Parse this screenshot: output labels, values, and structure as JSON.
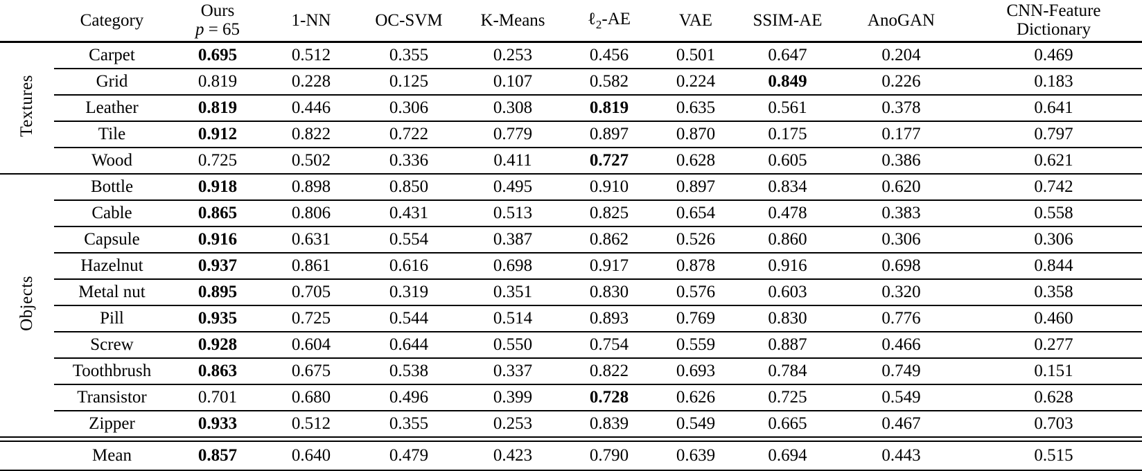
{
  "table": {
    "columns": [
      {
        "id": "category",
        "label": "Category"
      },
      {
        "id": "ours",
        "label": "Ours",
        "label2_pre": "p",
        "label2_post": " = 65"
      },
      {
        "id": "one-nn",
        "label": "1-NN"
      },
      {
        "id": "oc-svm",
        "label": "OC-SVM"
      },
      {
        "id": "k-means",
        "label": "K-Means"
      },
      {
        "id": "l2-ae",
        "label_pre": "ℓ",
        "label_sub": "2",
        "label_post": "-AE"
      },
      {
        "id": "vae",
        "label": "VAE"
      },
      {
        "id": "ssim-ae",
        "label": "SSIM-AE"
      },
      {
        "id": "anogan",
        "label": "AnoGAN"
      },
      {
        "id": "cnn-feature-dictionary",
        "label": "CNN-Feature",
        "label2": "Dictionary"
      }
    ],
    "groups": [
      {
        "name": "Textures",
        "rows": [
          {
            "category": "Carpet",
            "values": [
              "0.695",
              "0.512",
              "0.355",
              "0.253",
              "0.456",
              "0.501",
              "0.647",
              "0.204",
              "0.469"
            ],
            "bold": [
              0
            ]
          },
          {
            "category": "Grid",
            "values": [
              "0.819",
              "0.228",
              "0.125",
              "0.107",
              "0.582",
              "0.224",
              "0.849",
              "0.226",
              "0.183"
            ],
            "bold": [
              6
            ]
          },
          {
            "category": "Leather",
            "values": [
              "0.819",
              "0.446",
              "0.306",
              "0.308",
              "0.819",
              "0.635",
              "0.561",
              "0.378",
              "0.641"
            ],
            "bold": [
              0,
              4
            ]
          },
          {
            "category": "Tile",
            "values": [
              "0.912",
              "0.822",
              "0.722",
              "0.779",
              "0.897",
              "0.870",
              "0.175",
              "0.177",
              "0.797"
            ],
            "bold": [
              0
            ]
          },
          {
            "category": "Wood",
            "values": [
              "0.725",
              "0.502",
              "0.336",
              "0.411",
              "0.727",
              "0.628",
              "0.605",
              "0.386",
              "0.621"
            ],
            "bold": [
              4
            ]
          }
        ]
      },
      {
        "name": "Objects",
        "rows": [
          {
            "category": "Bottle",
            "values": [
              "0.918",
              "0.898",
              "0.850",
              "0.495",
              "0.910",
              "0.897",
              "0.834",
              "0.620",
              "0.742"
            ],
            "bold": [
              0
            ]
          },
          {
            "category": "Cable",
            "values": [
              "0.865",
              "0.806",
              "0.431",
              "0.513",
              "0.825",
              "0.654",
              "0.478",
              "0.383",
              "0.558"
            ],
            "bold": [
              0
            ]
          },
          {
            "category": "Capsule",
            "values": [
              "0.916",
              "0.631",
              "0.554",
              "0.387",
              "0.862",
              "0.526",
              "0.860",
              "0.306",
              "0.306"
            ],
            "bold": [
              0
            ]
          },
          {
            "category": "Hazelnut",
            "values": [
              "0.937",
              "0.861",
              "0.616",
              "0.698",
              "0.917",
              "0.878",
              "0.916",
              "0.698",
              "0.844"
            ],
            "bold": [
              0
            ]
          },
          {
            "category": "Metal nut",
            "values": [
              "0.895",
              "0.705",
              "0.319",
              "0.351",
              "0.830",
              "0.576",
              "0.603",
              "0.320",
              "0.358"
            ],
            "bold": [
              0
            ]
          },
          {
            "category": "Pill",
            "values": [
              "0.935",
              "0.725",
              "0.544",
              "0.514",
              "0.893",
              "0.769",
              "0.830",
              "0.776",
              "0.460"
            ],
            "bold": [
              0
            ]
          },
          {
            "category": "Screw",
            "values": [
              "0.928",
              "0.604",
              "0.644",
              "0.550",
              "0.754",
              "0.559",
              "0.887",
              "0.466",
              "0.277"
            ],
            "bold": [
              0
            ]
          },
          {
            "category": "Toothbrush",
            "values": [
              "0.863",
              "0.675",
              "0.538",
              "0.337",
              "0.822",
              "0.693",
              "0.784",
              "0.749",
              "0.151"
            ],
            "bold": [
              0
            ]
          },
          {
            "category": "Transistor",
            "values": [
              "0.701",
              "0.680",
              "0.496",
              "0.399",
              "0.728",
              "0.626",
              "0.725",
              "0.549",
              "0.628"
            ],
            "bold": [
              4
            ]
          },
          {
            "category": "Zipper",
            "values": [
              "0.933",
              "0.512",
              "0.355",
              "0.253",
              "0.839",
              "0.549",
              "0.665",
              "0.467",
              "0.703"
            ],
            "bold": [
              0
            ]
          }
        ]
      }
    ],
    "mean": {
      "category": "Mean",
      "values": [
        "0.857",
        "0.640",
        "0.479",
        "0.423",
        "0.790",
        "0.639",
        "0.694",
        "0.443",
        "0.515"
      ],
      "bold": [
        0
      ]
    },
    "text_color": "#000000",
    "background_color": "#ffffff"
  }
}
